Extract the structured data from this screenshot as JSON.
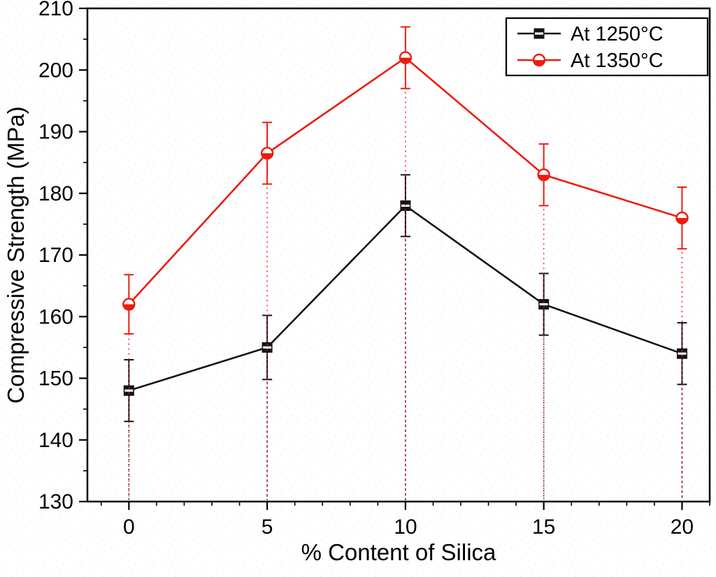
{
  "figure": {
    "background": "#ffffff"
  },
  "chart_data": {
    "type": "line",
    "title": "",
    "xlabel": "% Content of Silica",
    "ylabel": "Compressive Strength (MPa)",
    "x": [
      0,
      5,
      10,
      15,
      20
    ],
    "xticks": [
      0,
      5,
      10,
      15,
      20
    ],
    "yticks": [
      130,
      140,
      150,
      160,
      170,
      180,
      190,
      200,
      210
    ],
    "xlim": [
      -1.5,
      21
    ],
    "ylim": [
      130,
      210
    ],
    "grid": false,
    "drop_lines": "dotted vertical lines from each point to baseline",
    "legend_position": "top-right",
    "series": [
      {
        "name": "At 1250°C",
        "color": "#141414",
        "marker": "half-square",
        "values": [
          148,
          155,
          178,
          162,
          154
        ],
        "errors": [
          5,
          5.2,
          5,
          5,
          5
        ]
      },
      {
        "name": "At 1350°C",
        "color": "#ed1c0f",
        "marker": "half-circle",
        "values": [
          162,
          186.5,
          202,
          183,
          176
        ],
        "errors": [
          4.8,
          5,
          5,
          5,
          5
        ]
      }
    ]
  }
}
